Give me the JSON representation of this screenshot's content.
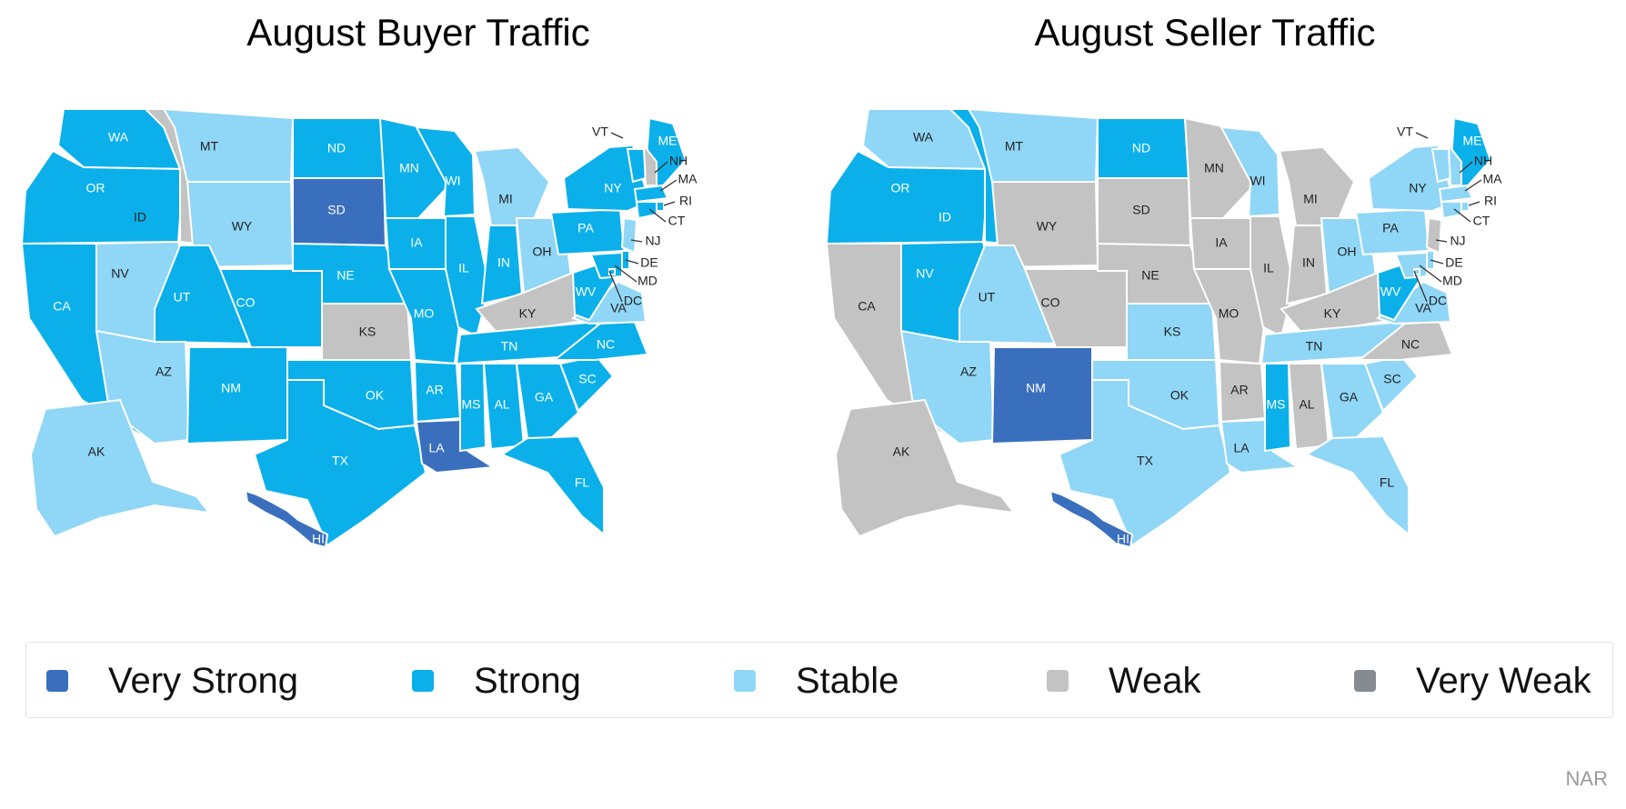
{
  "titles": {
    "left": "August Buyer Traffic",
    "right": "August Seller Traffic"
  },
  "source": "NAR",
  "colors": {
    "very_strong": "#3a6fbe",
    "strong": "#0bb0ea",
    "stable": "#90d6f6",
    "weak": "#c3c3c3",
    "very_weak": "#858b90"
  },
  "legend": [
    {
      "key": "very_strong",
      "label": "Very Strong"
    },
    {
      "key": "strong",
      "label": "Strong"
    },
    {
      "key": "stable",
      "label": "Stable"
    },
    {
      "key": "weak",
      "label": "Weak"
    },
    {
      "key": "very_weak",
      "label": "Very Weak"
    }
  ],
  "buyer_traffic": {
    "WA": "strong",
    "OR": "strong",
    "CA": "strong",
    "ID": "weak",
    "NV": "stable",
    "MT": "stable",
    "WY": "stable",
    "UT": "strong",
    "AZ": "stable",
    "CO": "strong",
    "NM": "strong",
    "ND": "strong",
    "SD": "very_strong",
    "NE": "strong",
    "KS": "weak",
    "OK": "strong",
    "TX": "strong",
    "MN": "strong",
    "IA": "strong",
    "MO": "strong",
    "AR": "strong",
    "LA": "very_strong",
    "WI": "strong",
    "IL": "strong",
    "MI": "stable",
    "IN": "strong",
    "OH": "stable",
    "KY": "weak",
    "TN": "strong",
    "MS": "strong",
    "AL": "strong",
    "GA": "strong",
    "FL": "strong",
    "SC": "strong",
    "NC": "strong",
    "VA": "stable",
    "WV": "strong",
    "PA": "strong",
    "NY": "strong",
    "ME": "strong",
    "VT": "strong",
    "NH": "weak",
    "MA": "strong",
    "RI": "strong",
    "CT": "strong",
    "NJ": "stable",
    "DE": "strong",
    "MD": "strong",
    "DC": "strong",
    "AK": "stable",
    "HI": "very_strong"
  },
  "seller_traffic": {
    "WA": "stable",
    "OR": "strong",
    "CA": "weak",
    "ID": "strong",
    "NV": "strong",
    "MT": "stable",
    "WY": "weak",
    "UT": "stable",
    "AZ": "stable",
    "CO": "weak",
    "NM": "very_strong",
    "ND": "strong",
    "SD": "weak",
    "NE": "weak",
    "KS": "stable",
    "OK": "stable",
    "TX": "stable",
    "MN": "weak",
    "IA": "weak",
    "MO": "weak",
    "AR": "weak",
    "LA": "stable",
    "WI": "stable",
    "IL": "weak",
    "MI": "weak",
    "IN": "weak",
    "OH": "stable",
    "KY": "weak",
    "TN": "stable",
    "MS": "strong",
    "AL": "weak",
    "GA": "stable",
    "FL": "stable",
    "SC": "stable",
    "NC": "weak",
    "VA": "stable",
    "WV": "strong",
    "PA": "stable",
    "NY": "stable",
    "ME": "strong",
    "VT": "stable",
    "NH": "stable",
    "MA": "stable",
    "RI": "stable",
    "CT": "stable",
    "NJ": "weak",
    "DE": "stable",
    "MD": "stable",
    "DC": "stable",
    "AK": "weak",
    "HI": "very_strong"
  }
}
